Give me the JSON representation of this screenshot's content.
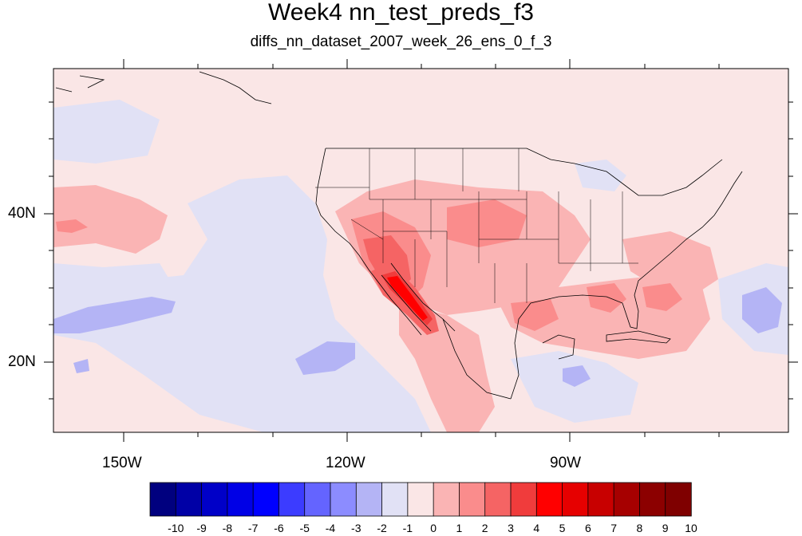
{
  "title": "Week4 nn_test_preds_f3",
  "subtitle": "diffs_nn_dataset_2007_week_26_ens_0_f_3",
  "axes": {
    "lat_labels": [
      "40N",
      "20N"
    ],
    "lon_labels": [
      "150W",
      "120W",
      "90W"
    ]
  },
  "colorbar": {
    "labels": [
      "-10",
      "-9",
      "-8",
      "-7",
      "-6",
      "-5",
      "-4",
      "-3",
      "-2",
      "-1",
      "0",
      "1",
      "2",
      "3",
      "4",
      "5",
      "6",
      "7",
      "8",
      "9",
      "10"
    ],
    "colors": [
      "#00007f",
      "#0000a6",
      "#0000c8",
      "#0000e6",
      "#0000ff",
      "#3c3cff",
      "#6464ff",
      "#8c8cff",
      "#b4b4f5",
      "#e1e1f5",
      "#fae6e6",
      "#fab4b4",
      "#fa8c8c",
      "#f56464",
      "#f03c3c",
      "#ff0000",
      "#e60000",
      "#c80000",
      "#a60000",
      "#8c0000",
      "#7f0000"
    ]
  },
  "map": {
    "background_color": "#fae6e6",
    "lon_range": [
      -160,
      -62
    ],
    "lat_range": [
      10,
      59
    ]
  }
}
